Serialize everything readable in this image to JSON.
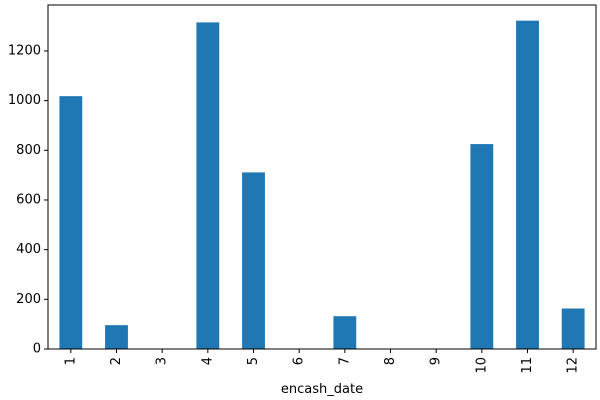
{
  "chart_data": {
    "type": "bar",
    "categories": [
      "1",
      "2",
      "3",
      "4",
      "5",
      "6",
      "7",
      "8",
      "9",
      "10",
      "11",
      "12"
    ],
    "values": [
      1018,
      96,
      0,
      1315,
      711,
      0,
      132,
      0,
      0,
      825,
      1322,
      163
    ],
    "title": "",
    "xlabel": "encash_date",
    "ylabel": "",
    "ylim": [
      0,
      1385
    ],
    "yticks": [
      0,
      200,
      400,
      600,
      800,
      1000,
      1200
    ],
    "grid": false,
    "legend": "none",
    "colors": {
      "bar": "#1f77b4",
      "axis": "#000000"
    }
  }
}
